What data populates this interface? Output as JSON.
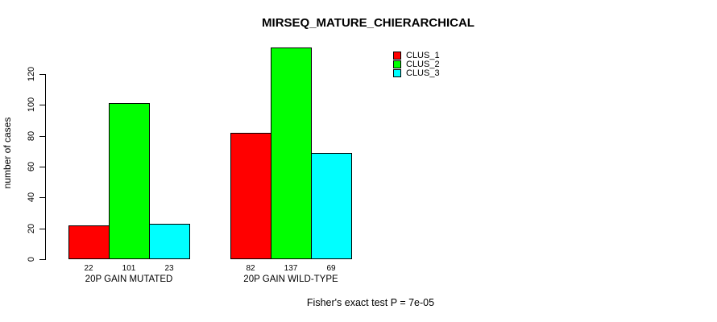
{
  "title": "MIRSEQ_MATURE_CHIERARCHICAL",
  "ylabel": "number of cases",
  "footer": "Fisher's exact test P = 7e-05",
  "colors": {
    "clus_1": "#ff0000",
    "clus_2": "#00ff00",
    "clus_3": "#00ffff",
    "axis": "#000000",
    "background": "#ffffff"
  },
  "chart_data": {
    "type": "bar",
    "title": "MIRSEQ_MATURE_CHIERARCHICAL",
    "xlabel": "",
    "ylabel": "number of cases",
    "categories": [
      "20P GAIN MUTATED",
      "20P GAIN WILD-TYPE"
    ],
    "series": [
      {
        "name": "CLUS_1",
        "color": "#ff0000",
        "values": [
          22,
          82
        ]
      },
      {
        "name": "CLUS_2",
        "color": "#00ff00",
        "values": [
          101,
          137
        ]
      },
      {
        "name": "CLUS_3",
        "color": "#00ffff",
        "values": [
          23,
          69
        ]
      }
    ],
    "bar_value_labels": [
      [
        22,
        101,
        23
      ],
      [
        82,
        137,
        69
      ]
    ],
    "yticks": [
      0,
      20,
      40,
      60,
      80,
      100,
      120
    ],
    "ylim": [
      0,
      137
    ],
    "grid": false,
    "legend_position": "top-right",
    "legend_entries": [
      "CLUS_1",
      "CLUS_2",
      "CLUS_3"
    ],
    "annotation": "Fisher's exact test P = 7e-05"
  }
}
